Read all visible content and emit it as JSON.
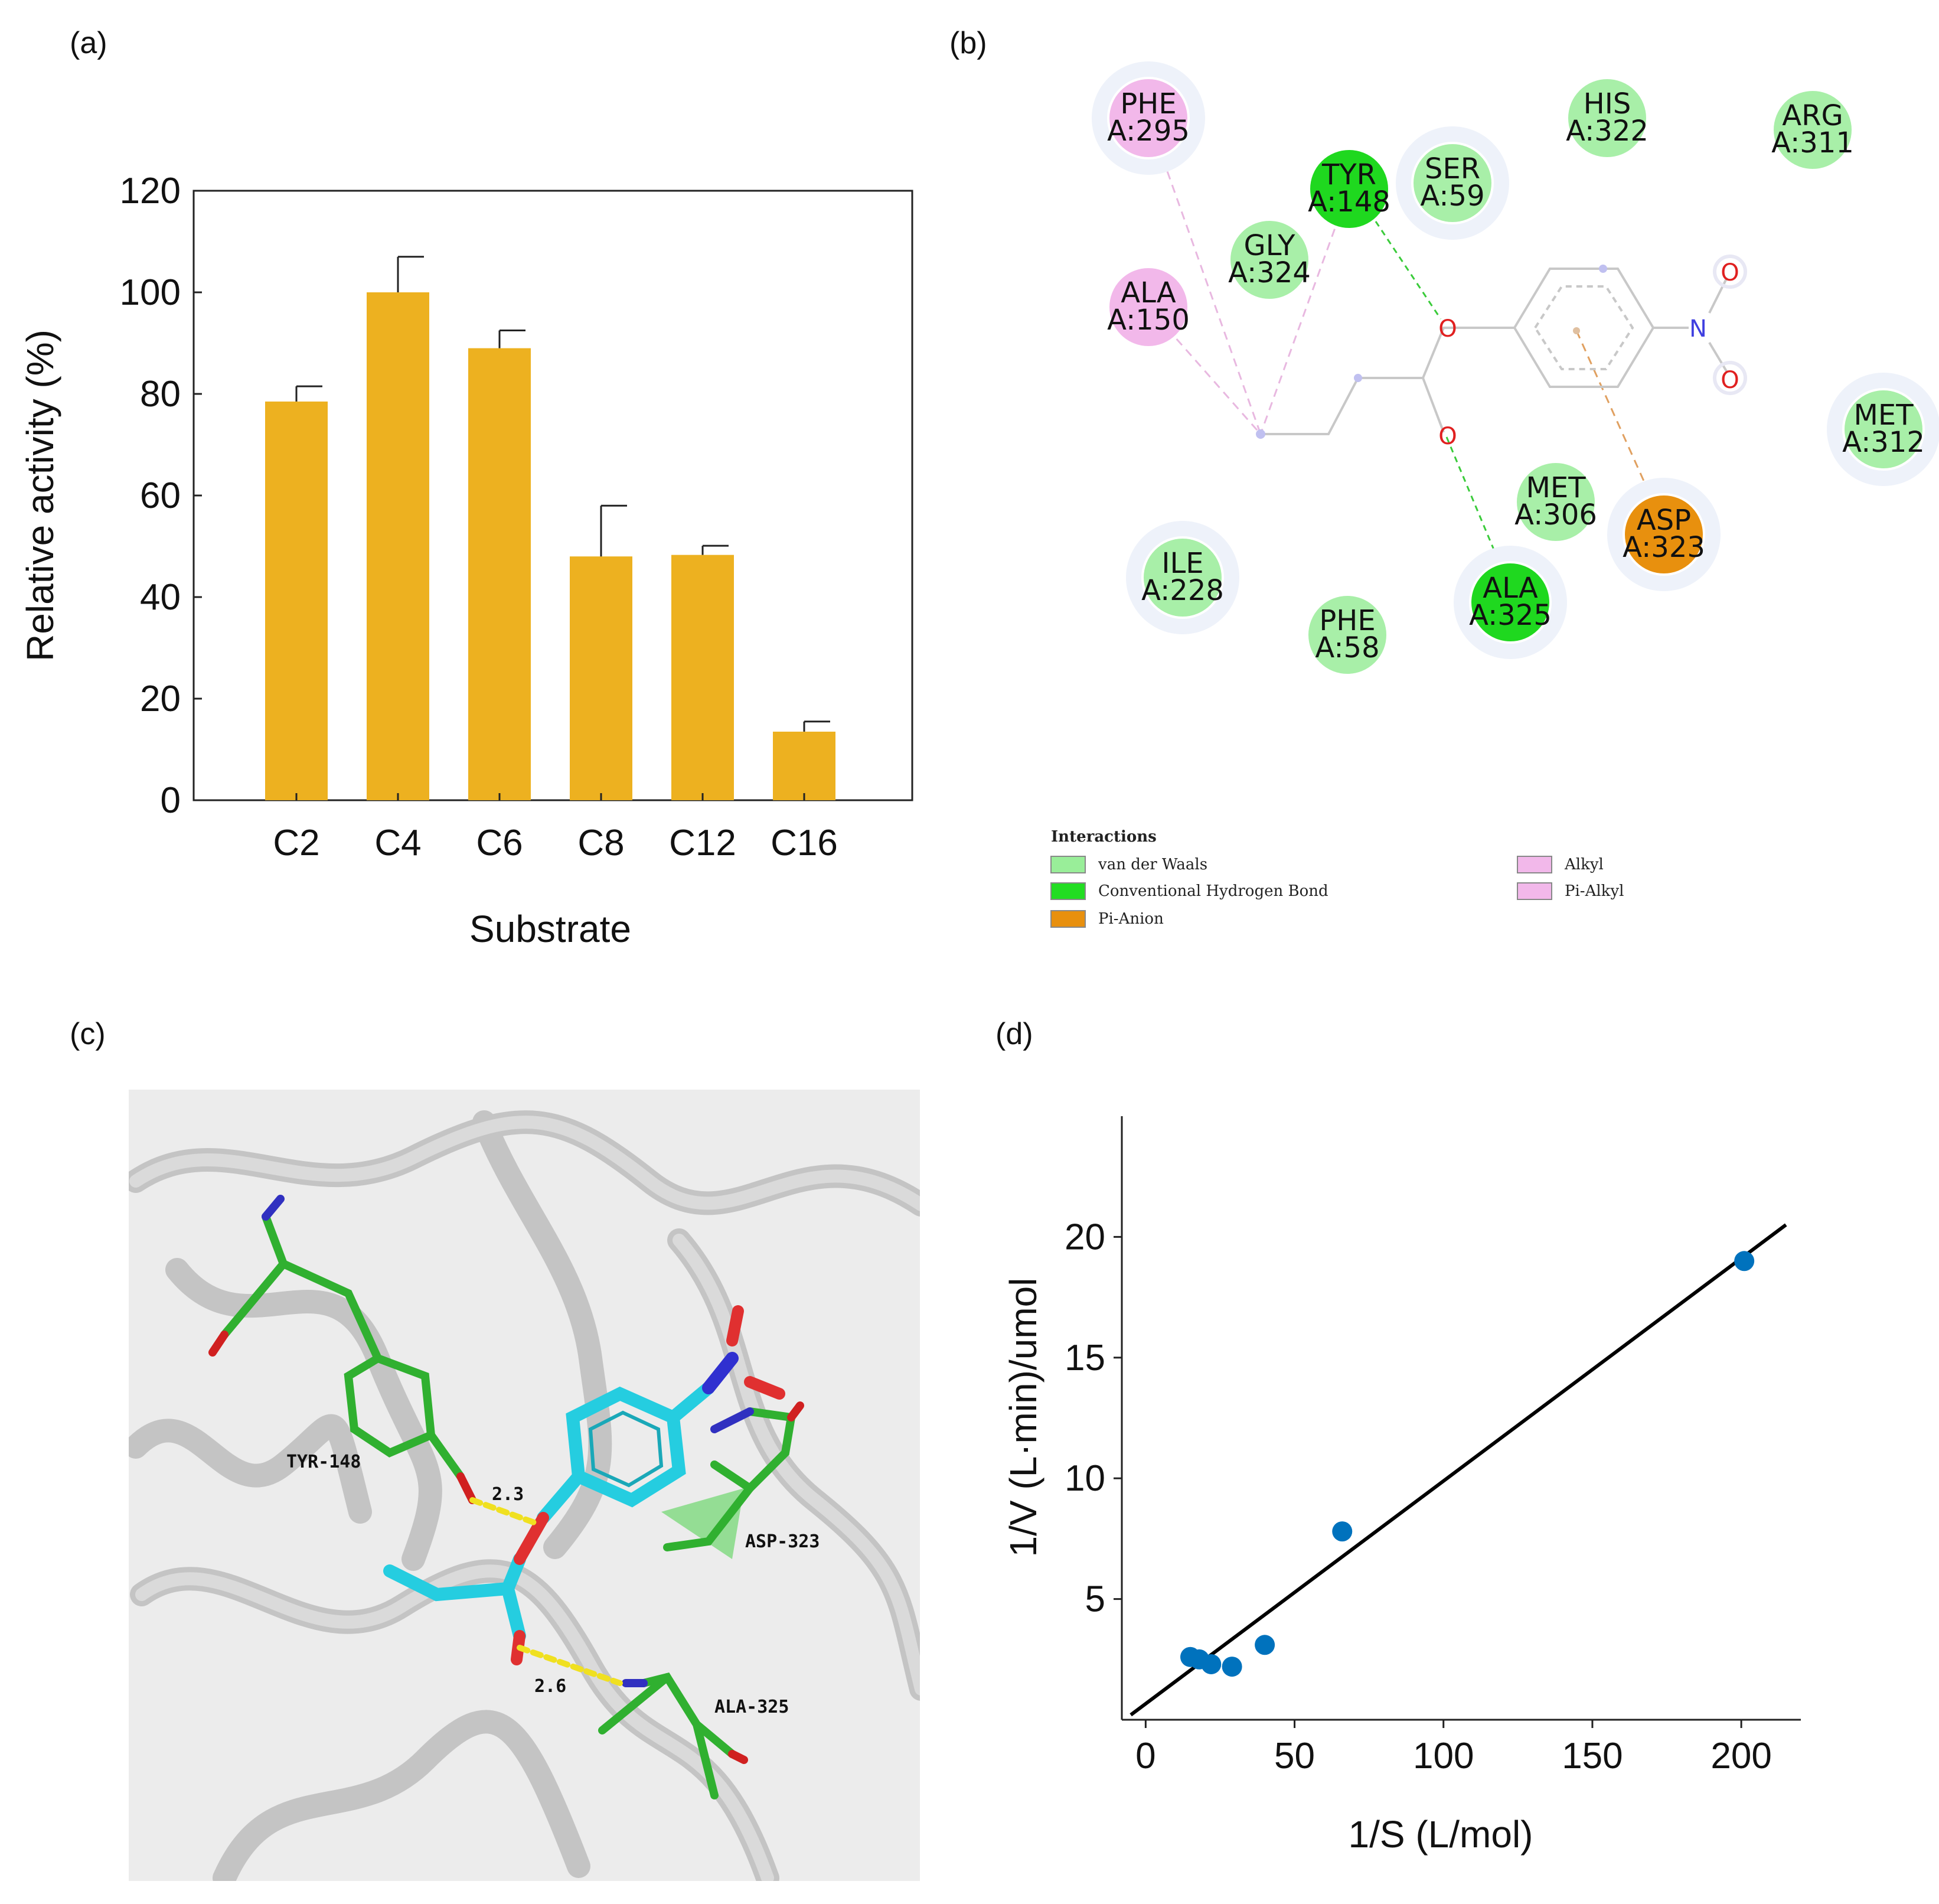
{
  "panels": {
    "a": "(a)",
    "b": "(b)",
    "c": "(c)",
    "d": "(d)"
  },
  "chart_data": [
    {
      "type": "bar",
      "panel": "a",
      "categories": [
        "C2",
        "C4",
        "C6",
        "C8",
        "C12",
        "C16"
      ],
      "values": [
        78.5,
        100,
        89,
        48,
        48.3,
        13.5
      ],
      "errors": [
        3,
        7,
        3.5,
        10,
        1.8,
        2
      ],
      "yticks": [
        0,
        20,
        40,
        60,
        80,
        100,
        120
      ],
      "ylim": [
        0,
        120
      ],
      "xlabel": "Substrate",
      "ylabel": "Relative activity (%)",
      "bar_color": "#EDB120"
    },
    {
      "type": "scatter",
      "panel": "d",
      "points": [
        {
          "x": 15,
          "y": 2.6
        },
        {
          "x": 18,
          "y": 2.5
        },
        {
          "x": 22,
          "y": 2.3
        },
        {
          "x": 29,
          "y": 2.2
        },
        {
          "x": 40,
          "y": 3.1
        },
        {
          "x": 66,
          "y": 7.8
        },
        {
          "x": 201,
          "y": 19
        }
      ],
      "fit_line": [
        {
          "x": -5,
          "y": 0.2
        },
        {
          "x": 215,
          "y": 20.5
        }
      ],
      "xticks": [
        0,
        50,
        100,
        150,
        200
      ],
      "yticks": [
        5,
        10,
        15,
        20
      ],
      "xlim": [
        -8,
        220
      ],
      "ylim": [
        0,
        25
      ],
      "xlabel": "1/S (L/mol)",
      "ylabel": "1/V (L·min)/umol",
      "point_color": "#0072BD"
    }
  ],
  "interaction_diagram": {
    "residues": [
      {
        "id": "phe295",
        "name": "PHE",
        "num": "A:295",
        "type": "pi-alkyl"
      },
      {
        "id": "ala150",
        "name": "ALA",
        "num": "A:150",
        "type": "alkyl"
      },
      {
        "id": "tyr148",
        "name": "TYR",
        "num": "A:148",
        "type": "hbond"
      },
      {
        "id": "gly324",
        "name": "GLY",
        "num": "A:324",
        "type": "vdw"
      },
      {
        "id": "ser59",
        "name": "SER",
        "num": "A:59",
        "type": "vdw"
      },
      {
        "id": "his322",
        "name": "HIS",
        "num": "A:322",
        "type": "vdw"
      },
      {
        "id": "arg311",
        "name": "ARG",
        "num": "A:311",
        "type": "vdw"
      },
      {
        "id": "met312",
        "name": "MET",
        "num": "A:312",
        "type": "vdw"
      },
      {
        "id": "met306",
        "name": "MET",
        "num": "A:306",
        "type": "vdw"
      },
      {
        "id": "asp323",
        "name": "ASP",
        "num": "A:323",
        "type": "pi-anion"
      },
      {
        "id": "ala325",
        "name": "ALA",
        "num": "A:325",
        "type": "hbond"
      },
      {
        "id": "ile228",
        "name": "ILE",
        "num": "A:228",
        "type": "vdw"
      },
      {
        "id": "phe58",
        "name": "PHE",
        "num": "A:58",
        "type": "vdw"
      }
    ],
    "atoms": {
      "o": "O",
      "n": "N"
    },
    "legend": {
      "title": "Interactions",
      "items": [
        {
          "label": "van der Waals",
          "color": "#99EE99"
        },
        {
          "label": "Conventional Hydrogen Bond",
          "color": "#22DD22"
        },
        {
          "label": "Pi-Anion",
          "color": "#E8900E"
        },
        {
          "label": "Alkyl",
          "color": "#F2B8EA"
        },
        {
          "label": "Pi-Alkyl",
          "color": "#F2B8EA"
        }
      ]
    },
    "colors": {
      "vdw": "#A8EFA8",
      "hbond": "#1FD81F",
      "pi-anion": "#E8900E",
      "alkyl": "#F2B8EA",
      "pi-alkyl": "#F2B8EA"
    }
  },
  "docking_view": {
    "labels": {
      "tyr": "TYR-148",
      "asp": "ASP-323",
      "ala": "ALA-325",
      "d1": "2.3",
      "d2": "2.6"
    }
  }
}
